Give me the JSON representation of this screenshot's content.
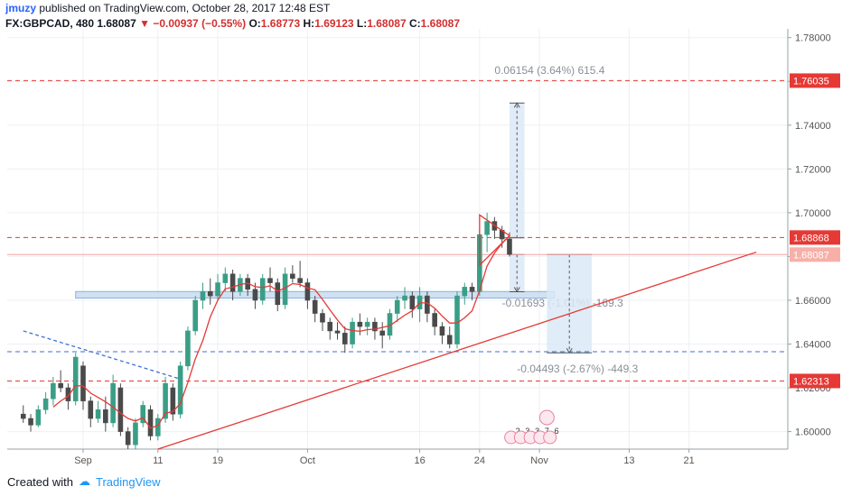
{
  "header": {
    "author": "jmuzy",
    "published_text": "published on TradingView.com, October 28, 2017 12:48 EST",
    "symbol": "FX:GBPCAD, 480",
    "last": "1.68087",
    "change": "−0.00937 (−0.55%)",
    "o_label": "O:",
    "o_value": "1.68773",
    "h_label": "H:",
    "h_value": "1.69123",
    "l_label": "L:",
    "l_value": "1.68087",
    "c_label": "C:",
    "c_value": "1.68087"
  },
  "footer": {
    "created_with": "Created with",
    "brand": "TradingView"
  },
  "colors": {
    "up": "#26a69a",
    "down": "#555555",
    "ma": "#e53935",
    "resistance": "#e53935",
    "support": "#3d6fd4",
    "zone": "#bcd4ec",
    "measure": "#dbe9f6",
    "price_tag": "#e53935"
  },
  "chart_data": {
    "type": "candlestick",
    "symbol": "FX:GBPCAD",
    "timeframe": "480",
    "ylim": [
      1.592,
      1.784
    ],
    "y_ticks": [
      "1.78000",
      "1.76000",
      "1.74000",
      "1.72000",
      "1.70000",
      "1.68000",
      "1.66000",
      "1.64000",
      "1.62000",
      "1.60000"
    ],
    "x_ticks": [
      {
        "label": "Sep",
        "day": 0
      },
      {
        "label": "11",
        "day": 10
      },
      {
        "label": "19",
        "day": 18
      },
      {
        "label": "Oct",
        "day": 30
      },
      {
        "label": "16",
        "day": 45
      },
      {
        "label": "24",
        "day": 53
      },
      {
        "label": "Nov",
        "day": 61
      },
      {
        "label": "13",
        "day": 73
      },
      {
        "label": "21",
        "day": 81
      }
    ],
    "candles": [
      [
        -8,
        1.608,
        1.612,
        1.604,
        1.606
      ],
      [
        -7,
        1.606,
        1.608,
        1.6,
        1.603
      ],
      [
        -6,
        1.603,
        1.612,
        1.602,
        1.61
      ],
      [
        -5,
        1.61,
        1.618,
        1.608,
        1.615
      ],
      [
        -4,
        1.615,
        1.625,
        1.612,
        1.622
      ],
      [
        -3,
        1.622,
        1.628,
        1.618,
        1.62
      ],
      [
        -2,
        1.62,
        1.622,
        1.61,
        1.614
      ],
      [
        -1,
        1.614,
        1.636,
        1.612,
        1.634
      ],
      [
        0,
        1.63,
        1.632,
        1.61,
        1.614
      ],
      [
        1,
        1.614,
        1.616,
        1.602,
        1.606
      ],
      [
        2,
        1.606,
        1.614,
        1.604,
        1.61
      ],
      [
        3,
        1.61,
        1.616,
        1.6,
        1.604
      ],
      [
        4,
        1.604,
        1.626,
        1.602,
        1.622
      ],
      [
        5,
        1.62,
        1.622,
        1.598,
        1.6
      ],
      [
        6,
        1.6,
        1.602,
        1.592,
        1.594
      ],
      [
        7,
        1.594,
        1.606,
        1.592,
        1.604
      ],
      [
        8,
        1.604,
        1.614,
        1.602,
        1.612
      ],
      [
        9,
        1.61,
        1.612,
        1.596,
        1.598
      ],
      [
        10,
        1.598,
        1.608,
        1.596,
        1.606
      ],
      [
        11,
        1.606,
        1.625,
        1.604,
        1.622
      ],
      [
        12,
        1.62,
        1.622,
        1.605,
        1.608
      ],
      [
        13,
        1.608,
        1.632,
        1.606,
        1.63
      ],
      [
        14,
        1.63,
        1.648,
        1.628,
        1.646
      ],
      [
        15,
        1.646,
        1.662,
        1.644,
        1.66
      ],
      [
        16,
        1.66,
        1.668,
        1.656,
        1.664
      ],
      [
        17,
        1.664,
        1.67,
        1.658,
        1.662
      ],
      [
        18,
        1.662,
        1.672,
        1.66,
        1.668
      ],
      [
        19,
        1.668,
        1.675,
        1.664,
        1.672
      ],
      [
        20,
        1.672,
        1.674,
        1.66,
        1.664
      ],
      [
        21,
        1.664,
        1.672,
        1.662,
        1.67
      ],
      [
        22,
        1.67,
        1.672,
        1.662,
        1.665
      ],
      [
        23,
        1.665,
        1.668,
        1.656,
        1.66
      ],
      [
        24,
        1.66,
        1.672,
        1.658,
        1.67
      ],
      [
        25,
        1.67,
        1.675,
        1.664,
        1.668
      ],
      [
        26,
        1.668,
        1.67,
        1.655,
        1.658
      ],
      [
        27,
        1.658,
        1.675,
        1.656,
        1.672
      ],
      [
        28,
        1.672,
        1.676,
        1.668,
        1.67
      ],
      [
        29,
        1.67,
        1.678,
        1.666,
        1.668
      ],
      [
        30,
        1.668,
        1.67,
        1.656,
        1.66
      ],
      [
        31,
        1.66,
        1.662,
        1.65,
        1.654
      ],
      [
        32,
        1.654,
        1.656,
        1.646,
        1.65
      ],
      [
        33,
        1.65,
        1.652,
        1.642,
        1.646
      ],
      [
        34,
        1.646,
        1.65,
        1.642,
        1.645
      ],
      [
        35,
        1.645,
        1.648,
        1.636,
        1.64
      ],
      [
        36,
        1.64,
        1.652,
        1.638,
        1.65
      ],
      [
        37,
        1.65,
        1.654,
        1.644,
        1.648
      ],
      [
        38,
        1.648,
        1.652,
        1.644,
        1.65
      ],
      [
        39,
        1.65,
        1.652,
        1.642,
        1.646
      ],
      [
        40,
        1.646,
        1.65,
        1.638,
        1.644
      ],
      [
        41,
        1.644,
        1.656,
        1.642,
        1.654
      ],
      [
        42,
        1.654,
        1.662,
        1.65,
        1.66
      ],
      [
        43,
        1.66,
        1.666,
        1.656,
        1.662
      ],
      [
        44,
        1.662,
        1.664,
        1.652,
        1.656
      ],
      [
        45,
        1.656,
        1.666,
        1.65,
        1.662
      ],
      [
        46,
        1.662,
        1.664,
        1.65,
        1.654
      ],
      [
        47,
        1.654,
        1.656,
        1.644,
        1.648
      ],
      [
        48,
        1.648,
        1.65,
        1.64,
        1.644
      ],
      [
        49,
        1.644,
        1.648,
        1.638,
        1.64
      ],
      [
        50,
        1.64,
        1.664,
        1.638,
        1.662
      ],
      [
        51,
        1.662,
        1.668,
        1.658,
        1.666
      ],
      [
        52,
        1.666,
        1.668,
        1.66,
        1.664
      ],
      [
        53,
        1.664,
        1.692,
        1.662,
        1.69
      ],
      [
        54,
        1.69,
        1.7,
        1.682,
        1.696
      ],
      [
        55,
        1.696,
        1.698,
        1.688,
        1.692
      ],
      [
        56,
        1.692,
        1.694,
        1.684,
        1.688
      ],
      [
        57,
        1.688,
        1.691,
        1.68,
        1.681
      ]
    ],
    "ma_label": "",
    "horizontal_lines": [
      {
        "name": "resistance-upper",
        "price": 1.76035,
        "label": "1.76035",
        "style": "dashed",
        "color": "#e53935"
      },
      {
        "name": "resistance-mid",
        "price": 1.68868,
        "label": "1.68868",
        "style": "dashed",
        "color": "#e53935"
      },
      {
        "name": "support-lower",
        "price": 1.62313,
        "label": "1.62313",
        "style": "dashed",
        "color": "#e53935"
      },
      {
        "name": "support-blue",
        "price": 1.6365,
        "label": "",
        "style": "dashed",
        "color": "#3d6fd4"
      }
    ],
    "last_price": {
      "price": 1.68087,
      "label": "1.68087"
    },
    "y_tick_prices": [
      1.78,
      1.76,
      1.74,
      1.72,
      1.7,
      1.68,
      1.66,
      1.64,
      1.62,
      1.6
    ],
    "trendlines": [
      {
        "name": "rising-trendline",
        "from": [
          10,
          1.592
        ],
        "to": [
          90,
          1.682
        ],
        "color": "#e53935",
        "style": "solid"
      },
      {
        "name": "descending-trendline",
        "from": [
          -8,
          1.646
        ],
        "to": [
          13,
          1.624
        ],
        "color": "#3d6fd4",
        "style": "dashed"
      }
    ],
    "zone": {
      "from_day": -1,
      "to_day": 63,
      "price_low": 1.661,
      "price_high": 1.664
    },
    "triangle": {
      "points": [
        [
          53,
          1.699
        ],
        [
          57,
          1.6895
        ],
        [
          53,
          1.676
        ]
      ]
    },
    "measurements": [
      {
        "name": "measure-up",
        "from_day": 57,
        "to_day": 59,
        "price_from": 1.6885,
        "price_to": 1.7501,
        "label": "0.06154 (3.64%) 615.4",
        "label_price": 1.7635,
        "label_day": 55
      },
      {
        "name": "measure-small",
        "from_day": 57,
        "to_day": 59,
        "price_from": 1.6809,
        "price_to": 1.6639,
        "label": "-0.01693 (-1.01%) -169.3",
        "label_price": 1.657,
        "label_day": 56
      },
      {
        "name": "measure-down",
        "from_day": 62,
        "to_day": 68,
        "price_from": 1.6809,
        "price_to": 1.636,
        "label": "-0.04493 (-2.67%) -449.3",
        "label_price": 1.627,
        "label_day": 58
      }
    ],
    "events": [
      {
        "label": "2",
        "day": 57.2
      },
      {
        "label": "3",
        "day": 58.5
      },
      {
        "label": "3",
        "day": 59.8
      },
      {
        "label": "7",
        "day": 61.1
      },
      {
        "label": "6",
        "day": 62.4
      }
    ],
    "grid": true
  }
}
